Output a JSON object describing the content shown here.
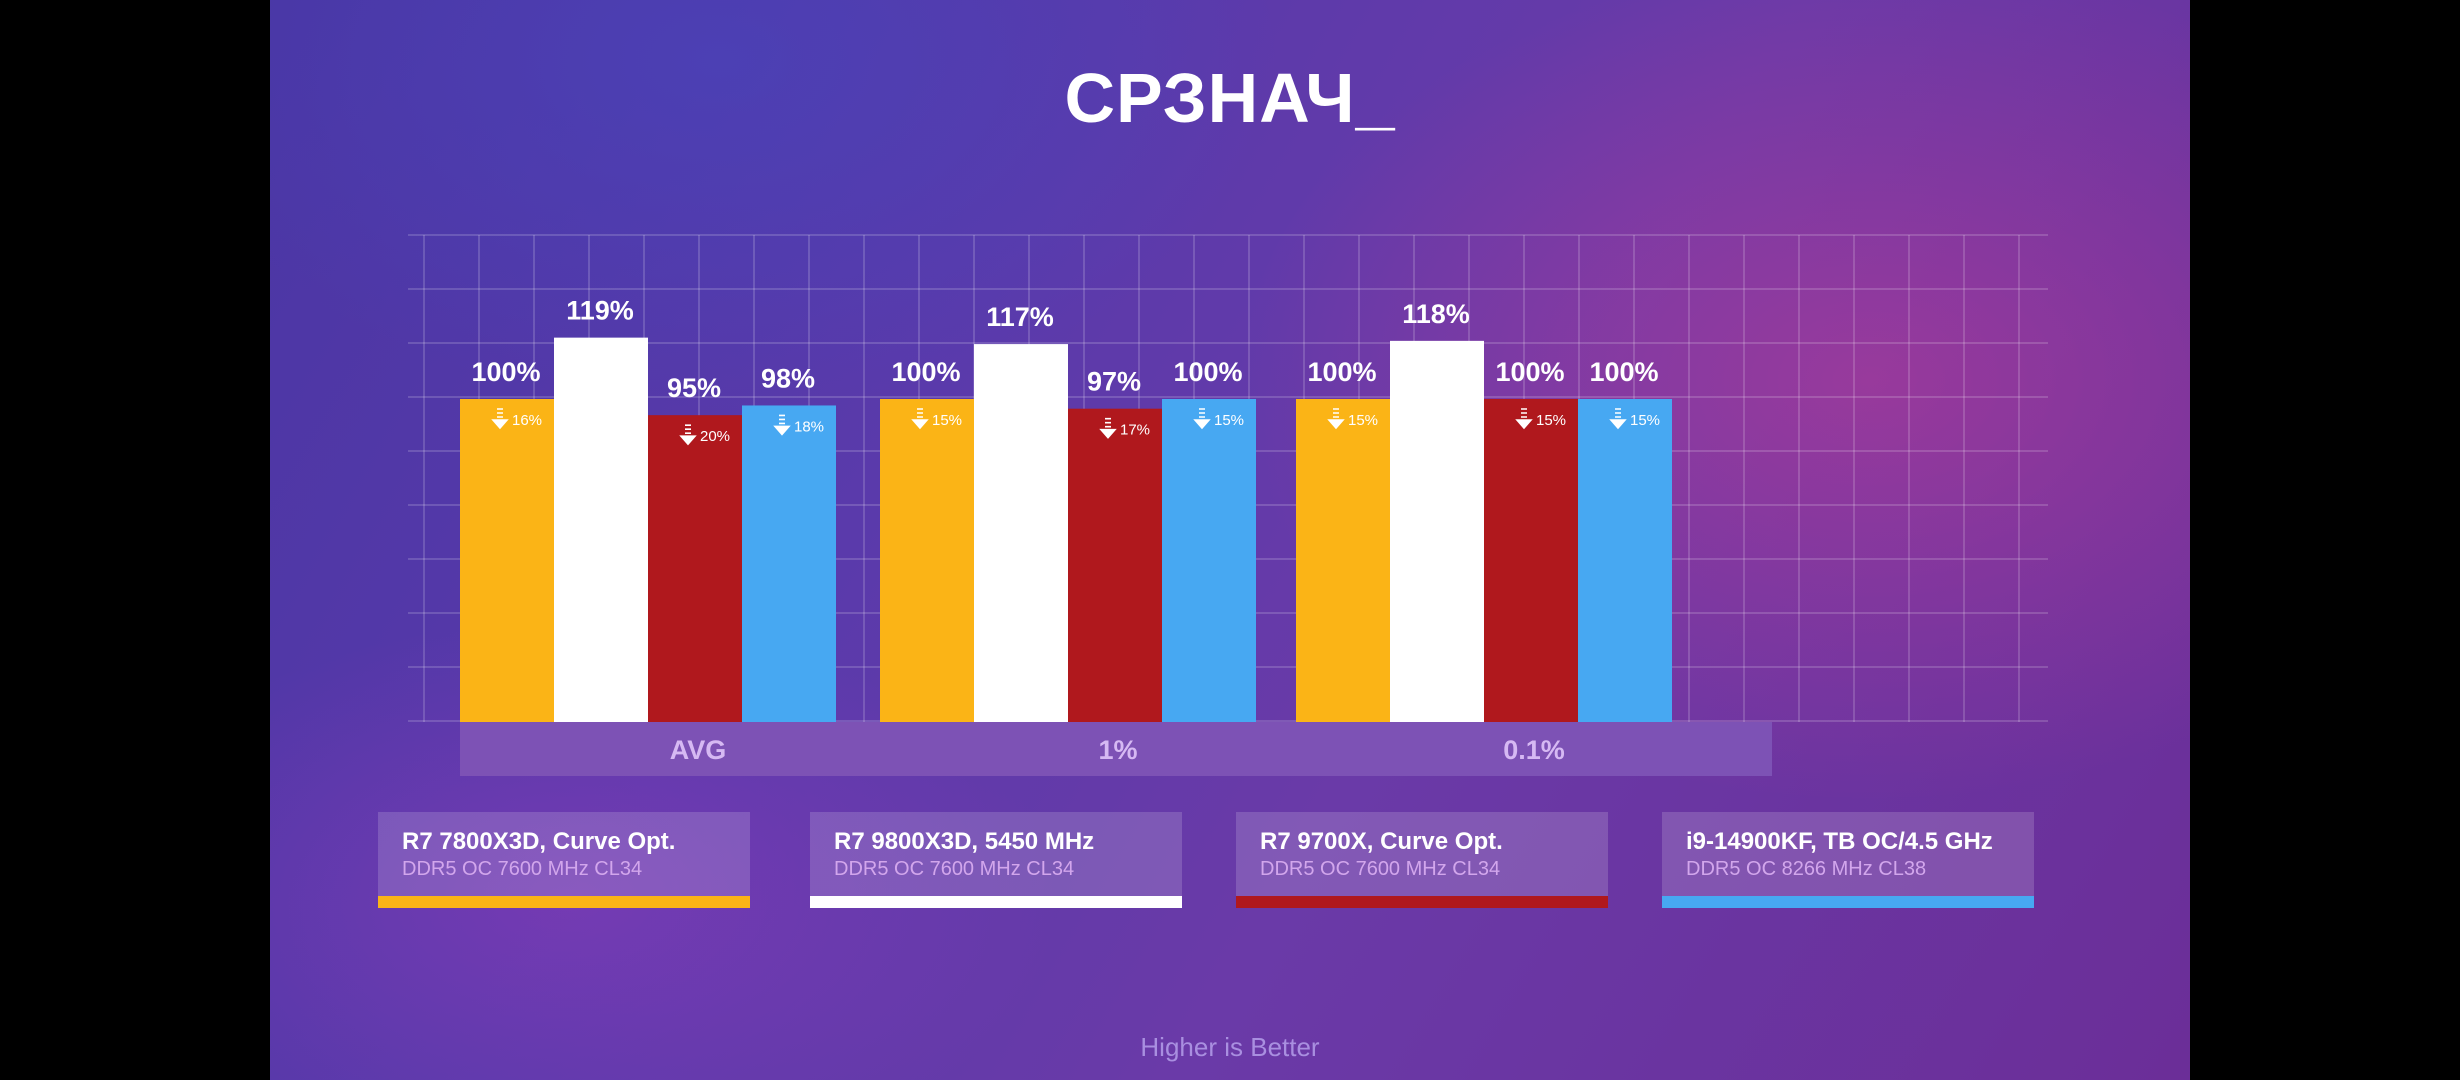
{
  "title": "СРЗНАЧ_",
  "footer": "Higher is Better",
  "colors": {
    "series": [
      "#fbb416",
      "#ffffff",
      "#b0181d",
      "#47a8f2"
    ],
    "group_label_bg": "#7d52b5",
    "drop_icon": "arrow-down-icon"
  },
  "legend": [
    {
      "name": "R7 7800X3D, Curve Opt.",
      "sub": "DDR5 OC 7600 MHz CL34"
    },
    {
      "name": "R7 9800X3D, 5450 MHz",
      "sub": "DDR5 OC 7600 MHz CL34"
    },
    {
      "name": "R7 9700X, Curve Opt.",
      "sub": "DDR5 OC 7600 MHz CL34"
    },
    {
      "name": "i9-14900KF, TB OC/4.5 GHz",
      "sub": "DDR5 OC 8266 MHz CL38"
    }
  ],
  "chart_data": {
    "type": "bar",
    "categories": [
      "AVG",
      "1%",
      "0.1%"
    ],
    "ylim": [
      0,
      140
    ],
    "grid": true,
    "series": [
      {
        "name": "R7 7800X3D, Curve Opt.",
        "values": [
          100,
          100,
          100
        ],
        "labels": [
          "100%",
          "100%",
          "100%"
        ],
        "drops": [
          "16%",
          "15%",
          "15%"
        ]
      },
      {
        "name": "R7 9800X3D, 5450 MHz",
        "values": [
          119,
          117,
          118
        ],
        "labels": [
          "119%",
          "117%",
          "118%"
        ],
        "drops": [
          "",
          "",
          ""
        ]
      },
      {
        "name": "R7 9700X, Curve Opt.",
        "values": [
          95,
          97,
          100
        ],
        "labels": [
          "95%",
          "97%",
          "100%"
        ],
        "drops": [
          "20%",
          "17%",
          "15%"
        ]
      },
      {
        "name": "i9-14900KF, TB OC/4.5 GHz",
        "values": [
          98,
          100,
          100
        ],
        "labels": [
          "98%",
          "100%",
          "100%"
        ],
        "drops": [
          "18%",
          "15%",
          "15%"
        ]
      }
    ]
  }
}
